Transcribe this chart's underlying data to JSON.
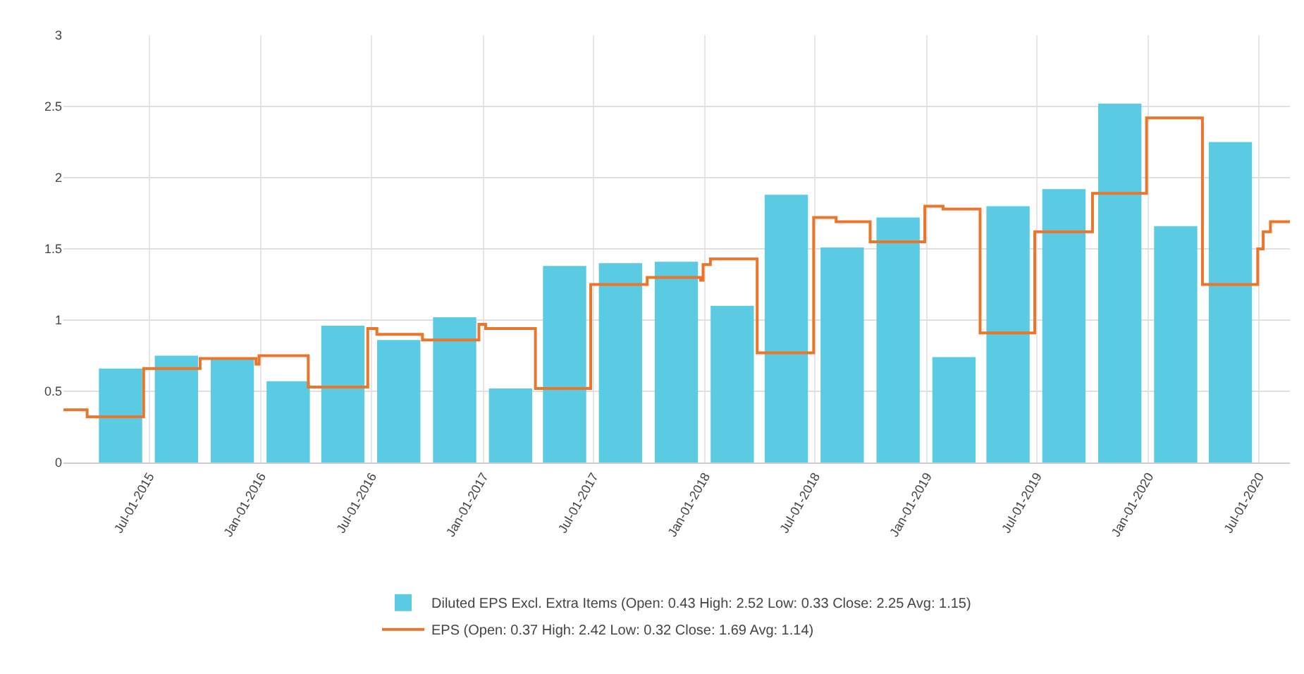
{
  "chart_data": {
    "type": "bar",
    "x": [
      "2015-05-15",
      "2015-08-15",
      "2015-11-15",
      "2016-02-15",
      "2016-05-15",
      "2016-08-15",
      "2016-11-15",
      "2017-02-15",
      "2017-05-15",
      "2017-08-15",
      "2017-11-15",
      "2018-02-15",
      "2018-05-15",
      "2018-08-15",
      "2018-11-15",
      "2019-02-15",
      "2019-05-15",
      "2019-08-15",
      "2019-11-15",
      "2020-02-15",
      "2020-05-15"
    ],
    "series": [
      {
        "name": "Diluted EPS Excl. Extra Items (Open: 0.43 High: 2.52 Low: 0.33 Close: 2.25 Avg: 1.15)",
        "color": "#5bcbe3",
        "values": [
          0.66,
          0.75,
          0.73,
          0.57,
          0.96,
          0.86,
          1.02,
          0.52,
          1.38,
          1.4,
          1.41,
          1.1,
          1.88,
          1.51,
          1.72,
          0.74,
          1.8,
          1.92,
          2.52,
          1.66,
          2.25
        ]
      },
      {
        "name": "EPS (Open: 0.37 High: 2.42 Low: 0.32 Close: 1.69 Avg: 1.14)",
        "type": "step",
        "color": "#e8762c",
        "x": [
          "2015-02-10",
          "2015-03-21",
          "2015-06-22",
          "2015-09-23",
          "2015-12-24",
          "2015-12-29",
          "2016-03-19",
          "2016-06-25",
          "2016-07-10",
          "2016-09-23",
          "2016-12-25",
          "2017-01-05",
          "2017-03-28",
          "2017-06-27",
          "2017-09-28",
          "2017-12-25",
          "2017-12-29",
          "2018-01-10",
          "2018-03-28",
          "2018-06-29",
          "2018-08-05",
          "2018-09-30",
          "2018-12-29",
          "2019-01-28",
          "2019-03-30",
          "2019-06-28",
          "2019-10-01",
          "2019-12-29",
          "2020-03-30",
          "2020-06-29",
          "2020-07-08",
          "2020-07-20",
          "2020-08-21"
        ],
        "values": [
          0.37,
          0.32,
          0.66,
          0.73,
          0.69,
          0.75,
          0.53,
          0.94,
          0.9,
          0.86,
          0.97,
          0.94,
          0.52,
          1.25,
          1.3,
          1.28,
          1.39,
          1.43,
          0.77,
          1.72,
          1.69,
          1.55,
          1.8,
          1.78,
          0.91,
          1.62,
          1.89,
          2.42,
          1.25,
          1.5,
          1.62,
          1.69,
          1.69
        ]
      }
    ],
    "xlim": [
      "2015-02-10",
      "2020-08-21"
    ],
    "xticks": [
      {
        "value": "2015-07-01",
        "label": "Jul-01-2015"
      },
      {
        "value": "2016-01-01",
        "label": "Jan-01-2016"
      },
      {
        "value": "2016-07-01",
        "label": "Jul-01-2016"
      },
      {
        "value": "2017-01-01",
        "label": "Jan-01-2017"
      },
      {
        "value": "2017-07-01",
        "label": "Jul-01-2017"
      },
      {
        "value": "2018-01-01",
        "label": "Jan-01-2018"
      },
      {
        "value": "2018-07-01",
        "label": "Jul-01-2018"
      },
      {
        "value": "2019-01-01",
        "label": "Jan-01-2019"
      },
      {
        "value": "2019-07-01",
        "label": "Jul-01-2019"
      },
      {
        "value": "2020-01-01",
        "label": "Jan-01-2020"
      },
      {
        "value": "2020-07-01",
        "label": "Jul-01-2020"
      }
    ],
    "ylim": [
      0,
      3
    ],
    "yticks": [
      0,
      0.5,
      1,
      1.5,
      2,
      2.5,
      3
    ],
    "grid": true,
    "legend": "bottom"
  }
}
